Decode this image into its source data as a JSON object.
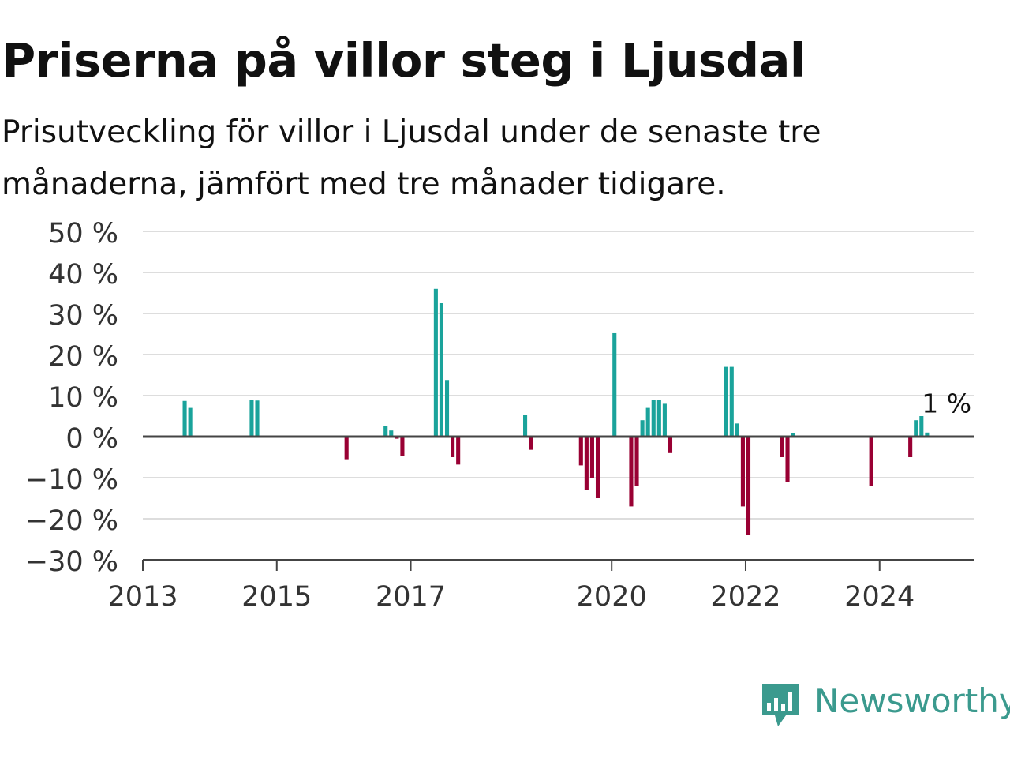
{
  "title": "Priserna på villor steg i Ljusdal",
  "subtitle": "Prisutveckling för villor i Ljusdal under de senaste tre månaderna, jämfört med tre månader tidigare.",
  "logo": {
    "text": "Newsworthy",
    "icon": "newsworthy-chart-icon",
    "color": "#3b9a8e"
  },
  "chart_data": {
    "type": "bar",
    "title": "Priserna på villor steg i Ljusdal",
    "xlabel": "",
    "ylabel": "",
    "ylim": [
      -30,
      50
    ],
    "yticks": [
      50,
      40,
      30,
      20,
      10,
      0,
      -10,
      -20,
      -30
    ],
    "ytick_labels": [
      "50 %",
      "40 %",
      "30 %",
      "20 %",
      "10 %",
      "0 %",
      "−10 %",
      "−20 %",
      "−30 %"
    ],
    "xlim": [
      "2013-01",
      "2025-06"
    ],
    "xticks": [
      "2013-01",
      "2015-01",
      "2017-01",
      "2020-01",
      "2022-01",
      "2024-01"
    ],
    "xtick_labels": [
      "2013",
      "2015",
      "2017",
      "2020",
      "2022",
      "2024"
    ],
    "grid": true,
    "colors": {
      "positive": "#1aa39b",
      "negative": "#990033",
      "grid": "#dddddd",
      "axis": "#444444"
    },
    "annotation": {
      "text": "1 %",
      "date": "2025-01"
    },
    "dates": [
      "2013-08",
      "2013-09",
      "2014-08",
      "2014-09",
      "2016-01",
      "2016-08",
      "2016-09",
      "2016-10",
      "2016-11",
      "2017-05",
      "2017-06",
      "2017-07",
      "2017-08",
      "2017-09",
      "2018-09",
      "2018-10",
      "2019-07",
      "2019-08",
      "2019-09",
      "2019-10",
      "2020-01",
      "2020-04",
      "2020-05",
      "2020-06",
      "2020-07",
      "2020-08",
      "2020-09",
      "2020-10",
      "2020-11",
      "2021-09",
      "2021-10",
      "2021-11",
      "2021-12",
      "2022-01",
      "2022-07",
      "2022-08",
      "2022-09",
      "2023-11",
      "2024-06",
      "2024-07",
      "2024-08",
      "2024-09"
    ],
    "values": [
      8.7,
      7.0,
      9.0,
      8.8,
      -5.5,
      2.5,
      1.5,
      -0.5,
      -4.7,
      36.0,
      32.5,
      13.8,
      -5.0,
      -6.8,
      5.3,
      -3.2,
      -7.0,
      -13.0,
      -10.0,
      -15.0,
      25.2,
      -17.0,
      -12.0,
      4.0,
      7.0,
      9.0,
      9.0,
      8.0,
      -4.0,
      17.0,
      17.0,
      3.2,
      -17.0,
      -24.0,
      -5.0,
      -11.0,
      0.8,
      -12.0,
      -5.0,
      4.0,
      5.0,
      1.0
    ]
  }
}
